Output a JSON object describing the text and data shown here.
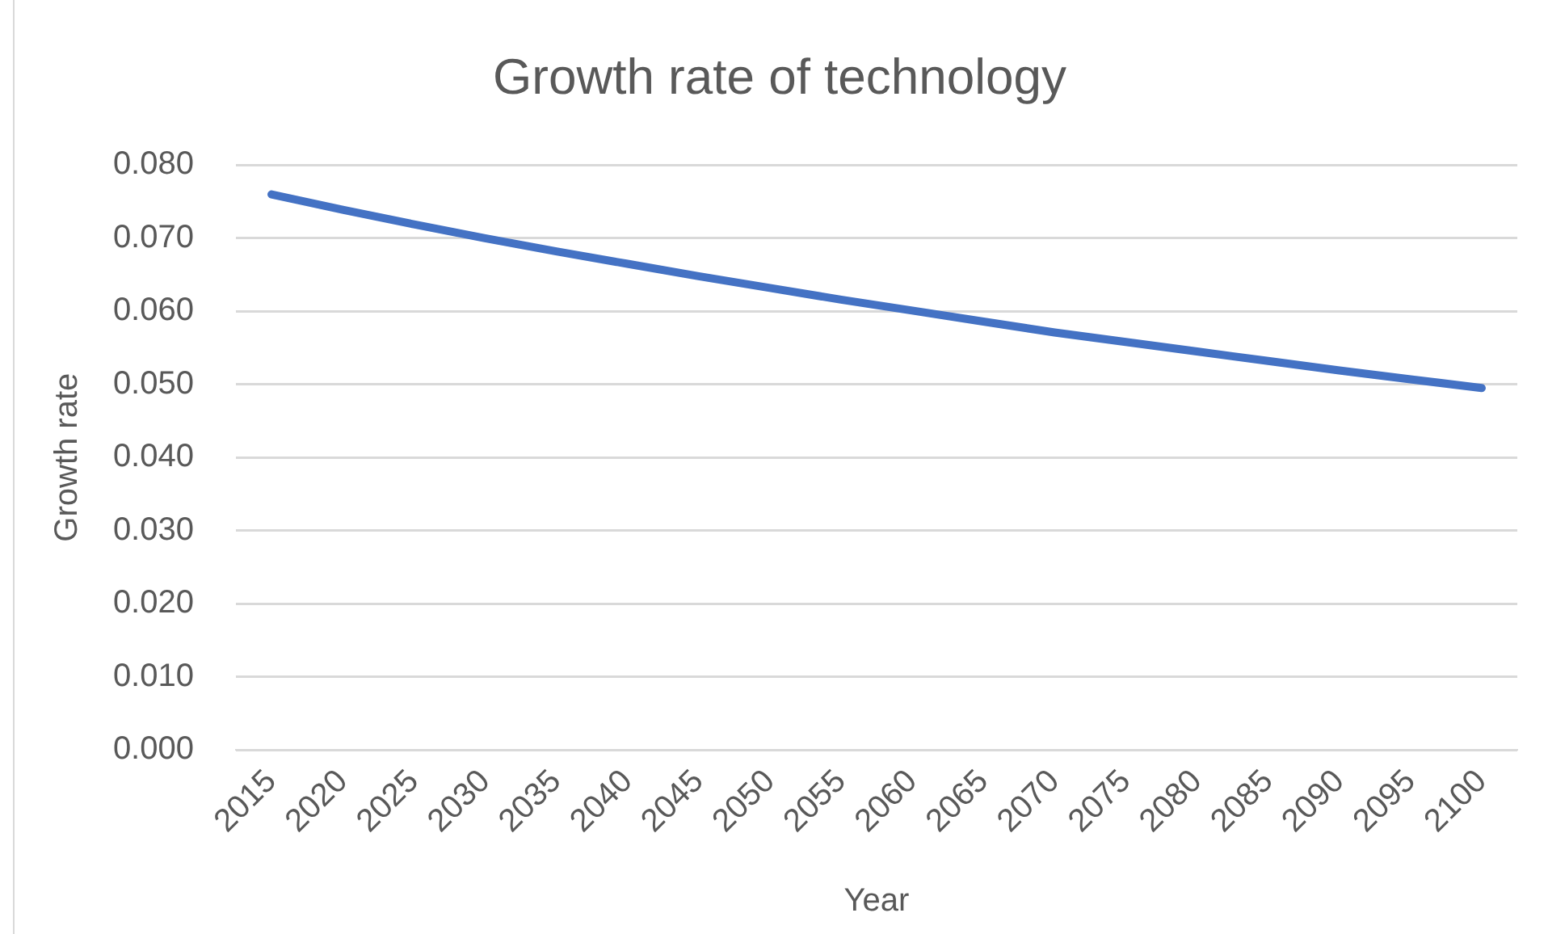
{
  "chart_data": {
    "type": "line",
    "title": "Growth rate of technology",
    "xlabel": "Year",
    "ylabel": "Growth rate",
    "categories": [
      "2015",
      "2020",
      "2025",
      "2030",
      "2035",
      "2040",
      "2045",
      "2050",
      "2055",
      "2060",
      "2065",
      "2070",
      "2075",
      "2080",
      "2085",
      "2090",
      "2095",
      "2100"
    ],
    "series": [
      {
        "color": "#4472c4",
        "values": [
          0.076,
          0.0739,
          0.0719,
          0.07,
          0.0682,
          0.0665,
          0.0648,
          0.0632,
          0.0616,
          0.0601,
          0.0586,
          0.0571,
          0.0558,
          0.0545,
          0.0532,
          0.0519,
          0.0507,
          0.0495
        ]
      }
    ],
    "ylim": [
      0,
      0.08
    ],
    "yticks": [
      {
        "value": 0,
        "label": "0.000"
      },
      {
        "value": 0.01,
        "label": "0.010"
      },
      {
        "value": 0.02,
        "label": "0.020"
      },
      {
        "value": 0.03,
        "label": "0.030"
      },
      {
        "value": 0.04,
        "label": "0.040"
      },
      {
        "value": 0.05,
        "label": "0.050"
      },
      {
        "value": 0.06,
        "label": "0.060"
      },
      {
        "value": 0.07,
        "label": "0.070"
      },
      {
        "value": 0.08,
        "label": "0.080"
      }
    ],
    "grid": "y",
    "marker": "none",
    "line_style": "solid"
  }
}
